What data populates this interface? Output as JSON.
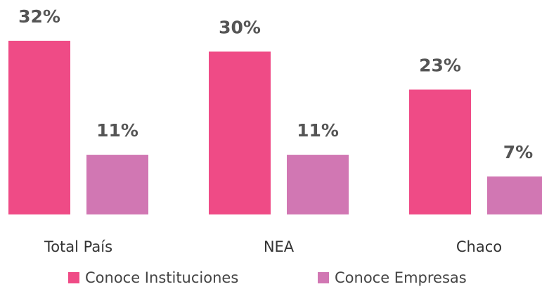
{
  "chart_data": {
    "type": "bar",
    "categories": [
      "Total País",
      "NEA",
      "Chaco"
    ],
    "series": [
      {
        "name": "Conoce Instituciones",
        "color": "#ef4b86",
        "values": [
          32,
          30,
          23
        ],
        "value_labels": [
          "32%",
          "30%",
          "23%"
        ]
      },
      {
        "name": "Conoce Empresas",
        "color": "#d177b3",
        "values": [
          11,
          11,
          7
        ],
        "value_labels": [
          "11%",
          "11%",
          "7%"
        ]
      }
    ],
    "legend": "bottom"
  }
}
